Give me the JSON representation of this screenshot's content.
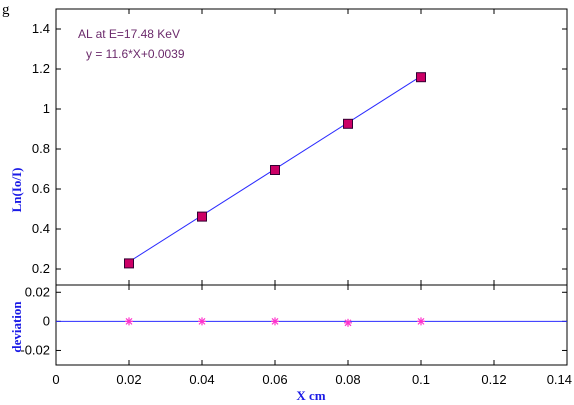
{
  "header_fragment": "g",
  "chart_data": [
    {
      "type": "line",
      "ylabel": "Ln(Io/I)",
      "xlim": [
        0,
        0.14
      ],
      "ylim": [
        0.12,
        1.5
      ],
      "yticks": [
        "1.4",
        "1.2",
        "1",
        "0.8",
        "0.6",
        "0.4",
        "0.2"
      ],
      "ytick_values": [
        1.4,
        1.2,
        1.0,
        0.8,
        0.6,
        0.4,
        0.2
      ],
      "annotations": [
        "AL at E=17.48 KeV",
        "y = 11.6*X+0.0039"
      ],
      "fit": {
        "slope": 11.6,
        "intercept": 0.0039
      },
      "x": [
        0.02,
        0.04,
        0.06,
        0.08,
        0.1
      ],
      "y": [
        0.228,
        0.462,
        0.695,
        0.926,
        1.159
      ],
      "colors": {
        "line": "#2b2bff",
        "marker": "#cc0066",
        "marker_edge": "#330033"
      }
    },
    {
      "type": "line",
      "ylabel": "deviation",
      "xlabel": "X cm",
      "xlim": [
        0,
        0.14
      ],
      "ylim": [
        -0.03,
        0.025
      ],
      "yticks": [
        "0.02",
        "0",
        "-0.02"
      ],
      "ytick_values": [
        0.02,
        0,
        -0.02
      ],
      "xticks": [
        "0",
        "0.02",
        "0.04",
        "0.06",
        "0.08",
        "0.1",
        "0.12",
        "0.14"
      ],
      "xtick_values": [
        0,
        0.02,
        0.04,
        0.06,
        0.08,
        0.1,
        0.12,
        0.14
      ],
      "x": [
        0.02,
        0.04,
        0.06,
        0.08,
        0.1
      ],
      "deviation": [
        0,
        0,
        0,
        -0.001,
        0
      ],
      "colors": {
        "line": "#2b2bff",
        "marker": "#ff33cc"
      }
    }
  ]
}
